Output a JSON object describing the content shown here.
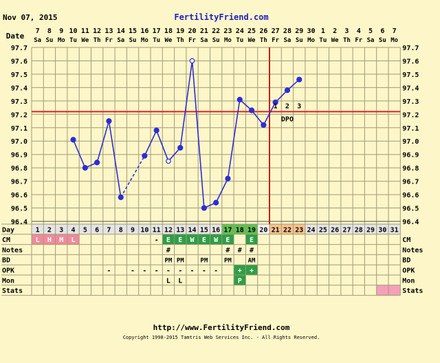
{
  "header": {
    "date": "Nov 07, 2015",
    "site": "FertilityFriend.com"
  },
  "footer": {
    "url": "http://www.FertilityFriend.com",
    "copyright": "Copyright 1998-2015 Tamtris Web Services Inc. - All Rights Reserved."
  },
  "labels": {
    "date_row": "Date",
    "day_row": "Day",
    "cm_row": "CM",
    "notes_row": "Notes",
    "bd_row": "BD",
    "opk_row": "OPK",
    "mon_row": "Mon",
    "stats_row": "Stats",
    "dpo": "DPO"
  },
  "colors": {
    "background": "#fdf6c8",
    "temp_line": "#2d2dd6",
    "coverline": "#e02020",
    "ovulation_line": "#c02020",
    "cm_bleeding": "#f08a9a",
    "cm_fertile": "#2e9e46",
    "fertile_days": "#60c050",
    "luteal_days": "#f8c28c"
  },
  "chart_data": {
    "type": "line",
    "title": "",
    "xlabel": "Day",
    "ylabel": "",
    "ylim": [
      96.4,
      97.7
    ],
    "yticks": [
      "96.4",
      "96.5",
      "96.6",
      "96.7",
      "96.8",
      "96.9",
      "97.0",
      "97.1",
      "97.2",
      "97.3",
      "97.4",
      "97.5",
      "97.6",
      "97.7"
    ],
    "grid": true,
    "cycle_days": [
      1,
      2,
      3,
      4,
      5,
      6,
      7,
      8,
      9,
      10,
      11,
      12,
      13,
      14,
      15,
      16,
      17,
      18,
      19,
      20,
      21,
      22,
      23,
      24,
      25,
      26,
      27,
      28,
      29,
      30,
      31
    ],
    "dates": [
      "7",
      "8",
      "9",
      "10",
      "11",
      "12",
      "13",
      "14",
      "15",
      "16",
      "17",
      "18",
      "19",
      "20",
      "21",
      "22",
      "23",
      "24",
      "25",
      "26",
      "27",
      "28",
      "29",
      "30",
      "1",
      "2",
      "3",
      "4",
      "5",
      "6",
      "7"
    ],
    "weekdays": [
      "Sa",
      "Su",
      "Mo",
      "Tu",
      "We",
      "Th",
      "Fr",
      "Sa",
      "Su",
      "Mo",
      "Tu",
      "We",
      "Th",
      "Fr",
      "Sa",
      "Su",
      "Mo",
      "Tu",
      "We",
      "Th",
      "Fr",
      "Sa",
      "Su",
      "Mo",
      "Tu",
      "We",
      "Th",
      "Fr",
      "Sa",
      "Su",
      "Mo"
    ],
    "temperatures": [
      null,
      null,
      null,
      97.01,
      96.8,
      96.84,
      97.15,
      96.58,
      null,
      96.89,
      97.08,
      96.85,
      96.95,
      97.6,
      96.5,
      96.54,
      96.72,
      97.31,
      97.23,
      97.12,
      97.29,
      97.38,
      97.46,
      null,
      null,
      null,
      null,
      null,
      null,
      null,
      null
    ],
    "open_points": [
      12,
      14
    ],
    "dashed_segments": [
      [
        8,
        10
      ]
    ],
    "coverline": 97.22,
    "ovulation_day": 20,
    "dpo_days": [
      21,
      22,
      23
    ],
    "dpo_labels": [
      "1",
      "2",
      "3"
    ],
    "fertile_day_highlight": [
      17,
      18,
      19
    ],
    "luteal_day_highlight": [
      21,
      22,
      23
    ],
    "ovulation_day_highlight": 20,
    "cm": {
      "1": "L",
      "2": "H",
      "3": "M",
      "4": "L",
      "11": "-",
      "12": "E",
      "13": "E",
      "14": "W",
      "15": "E",
      "16": "W",
      "17": "E",
      "19": "E"
    },
    "cm_bleeding_days": [
      1,
      2,
      3,
      4
    ],
    "cm_fertile_days": [
      12,
      13,
      14,
      15,
      16,
      17,
      19
    ],
    "notes": {
      "12": "#",
      "17": "#",
      "18": "#",
      "19": "#"
    },
    "bd": {
      "12": "PM",
      "13": "PM",
      "15": "PM",
      "17": "PM",
      "19": "AM"
    },
    "opk": {
      "7": "-",
      "9": "-",
      "10": "-",
      "11": "-",
      "12": "-",
      "13": "-",
      "14": "-",
      "15": "-",
      "16": "-",
      "18": "+",
      "19": "+"
    },
    "opk_positive_days": [
      18,
      19
    ],
    "mon": {
      "12": "L",
      "13": "L",
      "18": "P"
    },
    "mon_peak_days": [
      18
    ],
    "stats_highlight_days": [
      30,
      31
    ]
  }
}
